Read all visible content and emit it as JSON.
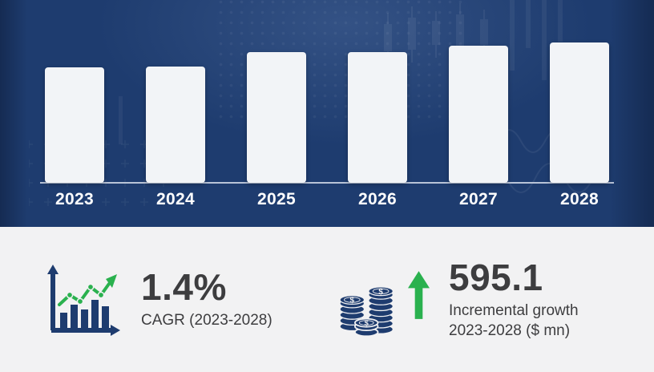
{
  "chart_data": {
    "type": "bar",
    "title": "",
    "xlabel": "",
    "ylabel": "",
    "categories": [
      "2023",
      "2024",
      "2025",
      "2026",
      "2027",
      "2028"
    ],
    "values": [
      144,
      145,
      163,
      163,
      171,
      175
    ],
    "value_unit": "relative bar height in px (no y-axis or data labels shown in image)",
    "grid": false,
    "legend": false,
    "bar_color": "#f2f4f7",
    "background_color": "#1e3c6f",
    "annotations": [
      "1.4% CAGR (2023-2028)",
      "595.1 Incremental growth 2023-2028 ($ mn)"
    ]
  },
  "stats": {
    "cagr": {
      "value": "1.4%",
      "label": "CAGR (2023-2028)"
    },
    "incremental_growth": {
      "value": "595.1",
      "label_line1": "Incremental growth",
      "label_line2": "2023-2028 ($ mn)"
    }
  },
  "icons": {
    "cagr_icon": "bar-chart-with-green-trend-arrow",
    "incremental_icon": "coin-stacks-with-green-up-arrow",
    "coin_symbol": "$"
  },
  "colors": {
    "navy": "#1e3c6f",
    "bar_fill": "#f2f4f7",
    "green_accent": "#2ab14e",
    "panel_background": "#f2f2f3",
    "dark_text": "#3d3d3f",
    "baseline": "#c9d2e2"
  }
}
